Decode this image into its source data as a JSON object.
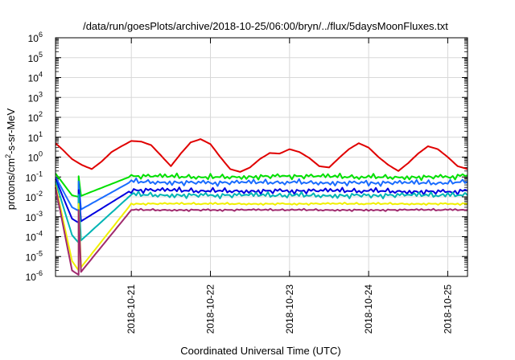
{
  "chart_data": {
    "type": "line",
    "title": "/data/run/goesPlots/archive/2018-10-25/06:00/bryn/../flux/5daysMoonFluxes.txt",
    "xlabel": "Coordinated Universal Time (UTC)",
    "ylabel_parts": [
      "protons/cm",
      "2",
      "-s-sr-MeV"
    ],
    "y_scale": "log",
    "ylim": [
      1e-06,
      1000000.0
    ],
    "y_ticks": [
      {
        "base": "10",
        "exp": "-6",
        "value": 1e-06
      },
      {
        "base": "10",
        "exp": "-5",
        "value": 1e-05
      },
      {
        "base": "10",
        "exp": "-4",
        "value": 0.0001
      },
      {
        "base": "10",
        "exp": "-3",
        "value": 0.001
      },
      {
        "base": "10",
        "exp": "-2",
        "value": 0.01
      },
      {
        "base": "10",
        "exp": "-1",
        "value": 0.1
      },
      {
        "base": "10",
        "exp": "0",
        "value": 1
      },
      {
        "base": "10",
        "exp": "1",
        "value": 10
      },
      {
        "base": "10",
        "exp": "2",
        "value": 100
      },
      {
        "base": "10",
        "exp": "3",
        "value": 1000
      },
      {
        "base": "10",
        "exp": "4",
        "value": 10000
      },
      {
        "base": "10",
        "exp": "5",
        "value": 100000
      },
      {
        "base": "10",
        "exp": "6",
        "value": 1000000
      }
    ],
    "xlim": [
      "2018-10-20T01:00",
      "2018-10-25T06:00"
    ],
    "x_ticks": [
      "2018-10-21",
      "2018-10-22",
      "2018-10-23",
      "2018-10-24",
      "2018-10-25"
    ],
    "grid": true,
    "legend": "none",
    "series": [
      {
        "color": "#e00000",
        "x": [
          "2018-10-20T01:00",
          "2018-10-20T03:00",
          "2018-10-20T06:00",
          "2018-10-20T09:00",
          "2018-10-20T12:00",
          "2018-10-20T15:00",
          "2018-10-20T18:00",
          "2018-10-20T21:00",
          "2018-10-21T00:00",
          "2018-10-21T03:00",
          "2018-10-21T06:00",
          "2018-10-21T09:00",
          "2018-10-21T12:00",
          "2018-10-21T15:00",
          "2018-10-21T18:00",
          "2018-10-21T21:00",
          "2018-10-22T00:00",
          "2018-10-22T03:00",
          "2018-10-22T06:00",
          "2018-10-22T09:00",
          "2018-10-22T12:00",
          "2018-10-22T15:00",
          "2018-10-22T18:00",
          "2018-10-22T21:00",
          "2018-10-23T00:00",
          "2018-10-23T03:00",
          "2018-10-23T06:00",
          "2018-10-23T09:00",
          "2018-10-23T12:00",
          "2018-10-23T15:00",
          "2018-10-23T18:00",
          "2018-10-23T21:00",
          "2018-10-24T00:00",
          "2018-10-24T03:00",
          "2018-10-24T06:00",
          "2018-10-24T09:00",
          "2018-10-24T12:00",
          "2018-10-24T15:00",
          "2018-10-24T18:00",
          "2018-10-24T21:00",
          "2018-10-25T00:00",
          "2018-10-25T03:00",
          "2018-10-25T06:00"
        ],
        "values": [
          5.0,
          2.5,
          0.8,
          0.4,
          0.25,
          0.6,
          1.8,
          3.5,
          6.5,
          6.0,
          4.0,
          1.2,
          0.35,
          1.5,
          5.5,
          8.0,
          4.5,
          1.0,
          0.25,
          0.18,
          0.3,
          0.8,
          1.6,
          1.5,
          2.5,
          1.8,
          0.9,
          0.35,
          0.3,
          0.9,
          2.5,
          5.0,
          3.0,
          1.0,
          0.4,
          0.2,
          0.5,
          1.5,
          3.5,
          2.5,
          1.0,
          0.35,
          0.25
        ]
      },
      {
        "color": "#00e000",
        "x": [
          "2018-10-20T01:00",
          "2018-10-20T06:00",
          "2018-10-20T08:00",
          "2018-10-21T00:00",
          "2018-10-22T00:00",
          "2018-10-23T00:00",
          "2018-10-24T00:00",
          "2018-10-25T00:00",
          "2018-10-25T06:00"
        ],
        "values": [
          0.15,
          0.012,
          0.01,
          0.11,
          0.1,
          0.11,
          0.1,
          0.1,
          0.12
        ]
      },
      {
        "color": "#1a6cff",
        "x": [
          "2018-10-20T01:00",
          "2018-10-20T06:00",
          "2018-10-20T08:00",
          "2018-10-21T00:00",
          "2018-10-22T00:00",
          "2018-10-23T00:00",
          "2018-10-24T00:00",
          "2018-10-25T00:00",
          "2018-10-25T06:00"
        ],
        "values": [
          0.1,
          0.003,
          0.002,
          0.06,
          0.05,
          0.055,
          0.05,
          0.05,
          0.06
        ]
      },
      {
        "color": "#0000e0",
        "x": [
          "2018-10-20T01:00",
          "2018-10-20T06:00",
          "2018-10-20T08:00",
          "2018-10-21T00:00",
          "2018-10-22T00:00",
          "2018-10-23T00:00",
          "2018-10-24T00:00",
          "2018-10-25T00:00",
          "2018-10-25T06:00"
        ],
        "values": [
          0.08,
          0.0008,
          0.0005,
          0.022,
          0.02,
          0.02,
          0.02,
          0.018,
          0.02
        ]
      },
      {
        "color": "#00b4b4",
        "x": [
          "2018-10-20T01:00",
          "2018-10-20T06:00",
          "2018-10-20T08:00",
          "2018-10-21T00:00",
          "2018-10-22T00:00",
          "2018-10-23T00:00",
          "2018-10-24T00:00",
          "2018-10-25T00:00",
          "2018-10-25T06:00"
        ],
        "values": [
          0.06,
          0.00012,
          5e-05,
          0.013,
          0.012,
          0.012,
          0.012,
          0.012,
          0.012
        ]
      },
      {
        "color": "#f0f000",
        "x": [
          "2018-10-20T01:00",
          "2018-10-20T06:00",
          "2018-10-20T08:00",
          "2018-10-21T00:00",
          "2018-10-22T00:00",
          "2018-10-23T00:00",
          "2018-10-24T00:00",
          "2018-10-25T00:00",
          "2018-10-25T06:00"
        ],
        "values": [
          0.04,
          6e-06,
          2e-06,
          0.0045,
          0.0045,
          0.0045,
          0.0045,
          0.0045,
          0.0045
        ]
      },
      {
        "color": "#a02a6e",
        "x": [
          "2018-10-20T01:00",
          "2018-10-20T06:00",
          "2018-10-20T08:00",
          "2018-10-21T00:00",
          "2018-10-22T00:00",
          "2018-10-23T00:00",
          "2018-10-24T00:00",
          "2018-10-25T00:00",
          "2018-10-25T06:00"
        ],
        "values": [
          0.03,
          2e-06,
          1.2e-06,
          0.0022,
          0.0022,
          0.0022,
          0.0022,
          0.0022,
          0.0022
        ]
      }
    ]
  }
}
